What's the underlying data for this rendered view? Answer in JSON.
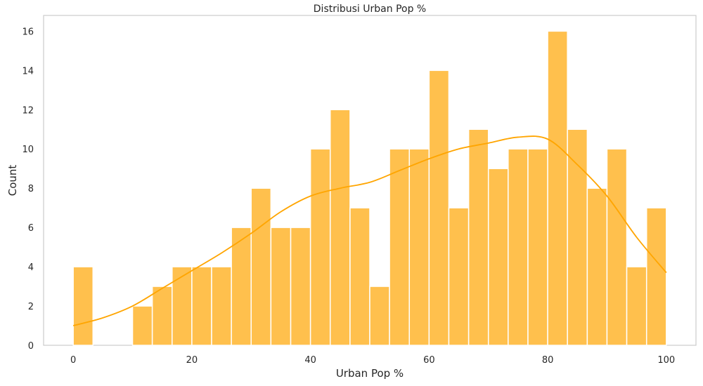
{
  "chart_data": {
    "type": "bar",
    "title": "Distribusi Urban Pop %",
    "xlabel": "Urban Pop %",
    "ylabel": "Count",
    "xlim": [
      -5,
      105
    ],
    "ylim": [
      0,
      16.8
    ],
    "xticks": [
      0,
      20,
      40,
      60,
      80,
      100
    ],
    "yticks": [
      0,
      2,
      4,
      6,
      8,
      10,
      12,
      14,
      16
    ],
    "bin_edges": [
      0,
      3.33,
      6.67,
      10,
      13.33,
      16.67,
      20,
      23.33,
      26.67,
      30,
      33.33,
      36.67,
      40,
      43.33,
      46.67,
      50,
      53.33,
      56.67,
      60,
      63.33,
      66.67,
      70,
      73.33,
      76.67,
      80,
      83.33,
      86.67,
      90,
      93.33,
      96.67,
      100
    ],
    "values": [
      4,
      0,
      0,
      2,
      3,
      4,
      4,
      4,
      6,
      8,
      6,
      6,
      10,
      12,
      7,
      3,
      10,
      10,
      14,
      7,
      11,
      9,
      10,
      10,
      16,
      11,
      8,
      10,
      4,
      7
    ],
    "kde": {
      "x": [
        0,
        5,
        10,
        15,
        20,
        25,
        30,
        35,
        40,
        45,
        50,
        55,
        60,
        65,
        70,
        75,
        80,
        85,
        90,
        95,
        100
      ],
      "y": [
        1.0,
        1.4,
        2.0,
        2.9,
        3.8,
        4.7,
        5.7,
        6.8,
        7.6,
        8.0,
        8.3,
        8.9,
        9.5,
        10.0,
        10.3,
        10.6,
        10.5,
        9.2,
        7.6,
        5.5,
        3.7
      ]
    },
    "grid": false,
    "colors": {
      "bar": "#ffc04d",
      "bar_edge": "#ffffff",
      "kde": "#ffa500",
      "spine": "#cccccc"
    }
  }
}
